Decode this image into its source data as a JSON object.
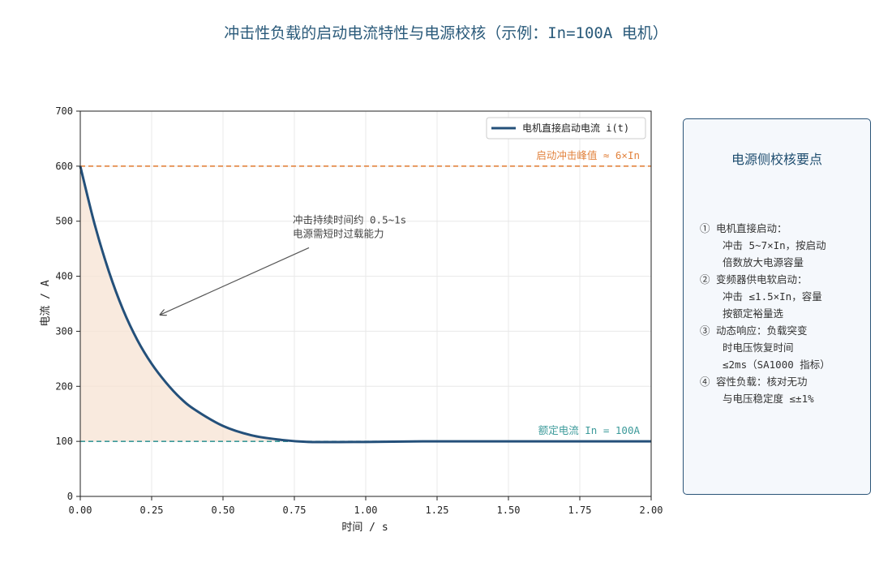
{
  "title": "冲击性负载的启动电流特性与电源校核（示例：In=100A 电机）",
  "chart_data": {
    "type": "line",
    "xlabel": "时间 / s",
    "ylabel": "电流 / A",
    "xlim": [
      0,
      2.0
    ],
    "ylim": [
      0,
      700
    ],
    "x_ticks": [
      "0.00",
      "0.25",
      "0.50",
      "0.75",
      "1.00",
      "1.25",
      "1.50",
      "1.75",
      "2.00"
    ],
    "y_ticks": [
      "0",
      "100",
      "200",
      "300",
      "400",
      "500",
      "600",
      "700"
    ],
    "grid": true,
    "legend_position": "top-right",
    "series": [
      {
        "name": "电机直接启动电流 i(t)",
        "color": "#24507a",
        "x": [
          0,
          0.05,
          0.1,
          0.15,
          0.2,
          0.25,
          0.3,
          0.35,
          0.4,
          0.5,
          0.6,
          0.7,
          0.8,
          1.0,
          1.2,
          1.5,
          2.0
        ],
        "y": [
          600,
          495,
          409,
          339,
          284,
          241,
          207,
          179,
          158,
          128,
          111,
          103,
          99,
          99,
          100,
          100,
          100
        ]
      }
    ],
    "shaded_area": {
      "between": [
        "series",
        "rated"
      ],
      "color": "#f7e3d3"
    },
    "reference_lines": [
      {
        "value": 600,
        "label": "启动冲击峰值 ≈ 6×In",
        "color": "#e2833e",
        "style": "dashed"
      },
      {
        "value": 100,
        "label": "额定电流 In = 100A",
        "color": "#3c9a9a",
        "style": "dashed"
      }
    ],
    "annotation": {
      "lines": [
        "冲击持续时间约 0.5~1s",
        "电源需短时过载能力"
      ],
      "arrow_to": [
        0.28,
        330
      ],
      "text_at": [
        0.75,
        440
      ]
    }
  },
  "notes": {
    "title": "电源侧校核要点",
    "items": [
      {
        "text": "① 电机直接启动：",
        "indent": false
      },
      {
        "text": "冲击 5~7×In，按启动",
        "indent": true
      },
      {
        "text": "倍数放大电源容量",
        "indent": true
      },
      {
        "text": "② 变频器供电软启动：",
        "indent": false
      },
      {
        "text": "冲击 ≤1.5×In，容量",
        "indent": true
      },
      {
        "text": "按额定裕量选",
        "indent": true
      },
      {
        "text": "③ 动态响应：负载突变",
        "indent": false
      },
      {
        "text": "时电压恢复时间",
        "indent": true
      },
      {
        "text": "≤2ms（SA1000 指标）",
        "indent": true
      },
      {
        "text": "④ 容性负载：核对无功",
        "indent": false
      },
      {
        "text": "与电压稳定度 ≤±1%",
        "indent": true
      }
    ]
  }
}
